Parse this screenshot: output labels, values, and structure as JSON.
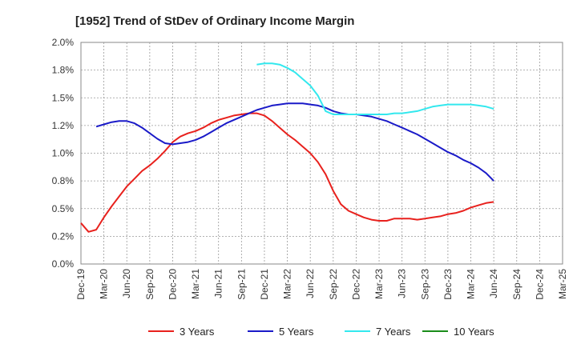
{
  "chart_data": {
    "type": "line",
    "title": "[1952]  Trend of StDev of Ordinary Income Margin",
    "xlabel": "",
    "ylabel": "",
    "ylim": [
      0,
      2.0
    ],
    "y_ticks": [
      "0.0%",
      "0.2%",
      "0.5%",
      "0.8%",
      "1.0%",
      "1.2%",
      "1.5%",
      "1.8%",
      "2.0%"
    ],
    "x_ticks": [
      "Dec-19",
      "Mar-20",
      "Jun-20",
      "Sep-20",
      "Dec-20",
      "Mar-21",
      "Jun-21",
      "Sep-21",
      "Dec-21",
      "Mar-22",
      "Jun-22",
      "Sep-22",
      "Dec-22",
      "Mar-23",
      "Jun-23",
      "Sep-23",
      "Dec-23",
      "Mar-24",
      "Jun-24",
      "Sep-24",
      "Dec-24",
      "Mar-25"
    ],
    "grid": true,
    "legend_position": "bottom",
    "series": [
      {
        "name": "3 Years",
        "color": "#e8211d",
        "points": [
          [
            0,
            0.37
          ],
          [
            1,
            0.29
          ],
          [
            2,
            0.31
          ],
          [
            3,
            0.42
          ],
          [
            4,
            0.52
          ],
          [
            5,
            0.61
          ],
          [
            6,
            0.7
          ],
          [
            7,
            0.77
          ],
          [
            8,
            0.84
          ],
          [
            9,
            0.89
          ],
          [
            10,
            0.95
          ],
          [
            11,
            1.02
          ],
          [
            12,
            1.1
          ],
          [
            13,
            1.15
          ],
          [
            14,
            1.18
          ],
          [
            15,
            1.2
          ],
          [
            16,
            1.23
          ],
          [
            17,
            1.27
          ],
          [
            18,
            1.3
          ],
          [
            19,
            1.32
          ],
          [
            20,
            1.34
          ],
          [
            21,
            1.35
          ],
          [
            22,
            1.36
          ],
          [
            23,
            1.36
          ],
          [
            24,
            1.34
          ],
          [
            25,
            1.29
          ],
          [
            26,
            1.23
          ],
          [
            27,
            1.17
          ],
          [
            28,
            1.12
          ],
          [
            29,
            1.06
          ],
          [
            30,
            1.0
          ],
          [
            31,
            0.92
          ],
          [
            32,
            0.81
          ],
          [
            33,
            0.66
          ],
          [
            34,
            0.54
          ],
          [
            35,
            0.48
          ],
          [
            36,
            0.45
          ],
          [
            37,
            0.42
          ],
          [
            38,
            0.4
          ],
          [
            39,
            0.39
          ],
          [
            40,
            0.39
          ],
          [
            41,
            0.41
          ],
          [
            42,
            0.41
          ],
          [
            43,
            0.41
          ],
          [
            44,
            0.4
          ],
          [
            45,
            0.41
          ],
          [
            46,
            0.42
          ],
          [
            47,
            0.43
          ],
          [
            48,
            0.45
          ],
          [
            49,
            0.46
          ],
          [
            50,
            0.48
          ],
          [
            51,
            0.51
          ],
          [
            52,
            0.53
          ],
          [
            53,
            0.55
          ],
          [
            54,
            0.56
          ]
        ]
      },
      {
        "name": "5 Years",
        "color": "#1a1ac8",
        "points": [
          [
            2,
            1.24
          ],
          [
            3,
            1.26
          ],
          [
            4,
            1.28
          ],
          [
            5,
            1.29
          ],
          [
            6,
            1.29
          ],
          [
            7,
            1.27
          ],
          [
            8,
            1.23
          ],
          [
            9,
            1.18
          ],
          [
            10,
            1.13
          ],
          [
            11,
            1.09
          ],
          [
            12,
            1.08
          ],
          [
            13,
            1.09
          ],
          [
            14,
            1.1
          ],
          [
            15,
            1.12
          ],
          [
            16,
            1.15
          ],
          [
            17,
            1.19
          ],
          [
            18,
            1.23
          ],
          [
            19,
            1.27
          ],
          [
            20,
            1.3
          ],
          [
            21,
            1.33
          ],
          [
            22,
            1.36
          ],
          [
            23,
            1.39
          ],
          [
            24,
            1.41
          ],
          [
            25,
            1.43
          ],
          [
            26,
            1.44
          ],
          [
            27,
            1.45
          ],
          [
            28,
            1.45
          ],
          [
            29,
            1.45
          ],
          [
            30,
            1.44
          ],
          [
            31,
            1.43
          ],
          [
            32,
            1.41
          ],
          [
            33,
            1.38
          ],
          [
            34,
            1.36
          ],
          [
            35,
            1.35
          ],
          [
            36,
            1.35
          ],
          [
            37,
            1.34
          ],
          [
            38,
            1.33
          ],
          [
            39,
            1.31
          ],
          [
            40,
            1.29
          ],
          [
            41,
            1.26
          ],
          [
            42,
            1.23
          ],
          [
            43,
            1.2
          ],
          [
            44,
            1.17
          ],
          [
            45,
            1.13
          ],
          [
            46,
            1.09
          ],
          [
            47,
            1.05
          ],
          [
            48,
            1.01
          ],
          [
            49,
            0.98
          ],
          [
            50,
            0.94
          ],
          [
            51,
            0.91
          ],
          [
            52,
            0.87
          ],
          [
            53,
            0.82
          ],
          [
            54,
            0.75
          ]
        ]
      },
      {
        "name": "7 Years",
        "color": "#33e8ee",
        "points": [
          [
            23,
            1.8
          ],
          [
            24,
            1.81
          ],
          [
            25,
            1.81
          ],
          [
            26,
            1.8
          ],
          [
            27,
            1.77
          ],
          [
            28,
            1.73
          ],
          [
            29,
            1.67
          ],
          [
            30,
            1.61
          ],
          [
            31,
            1.52
          ],
          [
            32,
            1.38
          ],
          [
            33,
            1.35
          ],
          [
            34,
            1.35
          ],
          [
            35,
            1.35
          ],
          [
            36,
            1.35
          ],
          [
            37,
            1.35
          ],
          [
            38,
            1.35
          ],
          [
            39,
            1.35
          ],
          [
            40,
            1.35
          ],
          [
            41,
            1.36
          ],
          [
            42,
            1.36
          ],
          [
            43,
            1.37
          ],
          [
            44,
            1.38
          ],
          [
            45,
            1.4
          ],
          [
            46,
            1.42
          ],
          [
            47,
            1.43
          ],
          [
            48,
            1.44
          ],
          [
            49,
            1.44
          ],
          [
            50,
            1.44
          ],
          [
            51,
            1.44
          ],
          [
            52,
            1.43
          ],
          [
            53,
            1.42
          ],
          [
            54,
            1.4
          ]
        ]
      },
      {
        "name": "10 Years",
        "color": "#1a8c1a",
        "points": []
      }
    ]
  }
}
